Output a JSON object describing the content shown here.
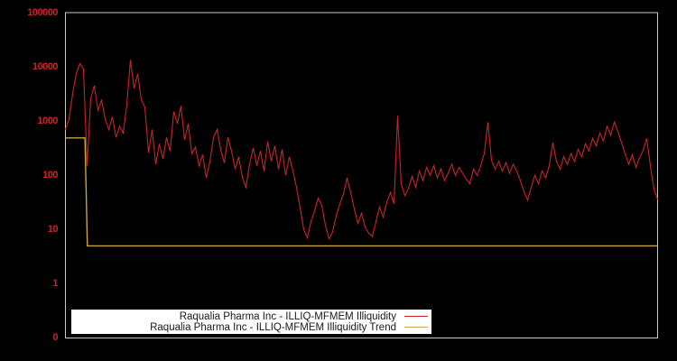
{
  "chart_data": {
    "type": "line",
    "title": "",
    "xlabel": "",
    "ylabel": "",
    "y_scale": "log",
    "ylim": [
      0.1,
      100000
    ],
    "grid": false,
    "legend_position": "bottom-center",
    "x_tick_labels": [],
    "y_ticks": [
      {
        "label": "100000",
        "value": 100000
      },
      {
        "label": "10000",
        "value": 10000
      },
      {
        "label": "1000",
        "value": 1000
      },
      {
        "label": "100",
        "value": 100
      },
      {
        "label": "10",
        "value": 10
      },
      {
        "label": "1",
        "value": 1
      },
      {
        "label": "0",
        "value": 0.1
      }
    ],
    "series": [
      {
        "name": "Raqualia Pharma Inc - ILLIQ-MFMEM Illiquidity",
        "type": "line",
        "color": "#cc2128",
        "values": [
          700,
          1100,
          3200,
          7500,
          11500,
          9000,
          150,
          2600,
          4500,
          1600,
          2400,
          1100,
          700,
          1200,
          500,
          800,
          600,
          2000,
          13500,
          4000,
          7500,
          2500,
          1800,
          260,
          700,
          160,
          380,
          200,
          500,
          280,
          1500,
          900,
          1900,
          450,
          900,
          250,
          330,
          150,
          240,
          90,
          180,
          500,
          700,
          300,
          170,
          500,
          280,
          130,
          220,
          90,
          60,
          160,
          320,
          150,
          280,
          120,
          420,
          180,
          350,
          130,
          300,
          100,
          220,
          120,
          60,
          25,
          10,
          7,
          14,
          22,
          38,
          28,
          12,
          6.8,
          9,
          18,
          30,
          45,
          90,
          48,
          24,
          13,
          20,
          11,
          8.5,
          7.5,
          14,
          26,
          17,
          32,
          48,
          30,
          1250,
          70,
          42,
          58,
          95,
          60,
          120,
          80,
          140,
          100,
          150,
          90,
          130,
          80,
          110,
          160,
          100,
          140,
          110,
          85,
          70,
          130,
          100,
          150,
          250,
          950,
          190,
          130,
          180,
          120,
          170,
          110,
          160,
          120,
          80,
          50,
          35,
          60,
          100,
          70,
          120,
          90,
          150,
          400,
          180,
          130,
          220,
          160,
          250,
          180,
          300,
          220,
          380,
          280,
          480,
          350,
          600,
          430,
          800,
          550,
          950,
          650,
          400,
          250,
          160,
          240,
          140,
          210,
          290,
          480,
          150,
          55,
          36
        ]
      },
      {
        "name": "Raqualia Pharma Inc - ILLIQ-MFMEM Illiquidity Trend",
        "type": "line",
        "color": "#c9a43f",
        "points": [
          {
            "t": 0.0,
            "value": 490
          },
          {
            "t": 0.033,
            "value": 490
          },
          {
            "t": 0.037,
            "value": 5
          },
          {
            "t": 1.0,
            "value": 5
          }
        ]
      }
    ]
  },
  "colors": {
    "background": "#000000",
    "frame": "#c8c8c8",
    "tick_label": "#cc2128",
    "legend_background": "#ffffff",
    "legend_text": "#1a1a1a"
  }
}
